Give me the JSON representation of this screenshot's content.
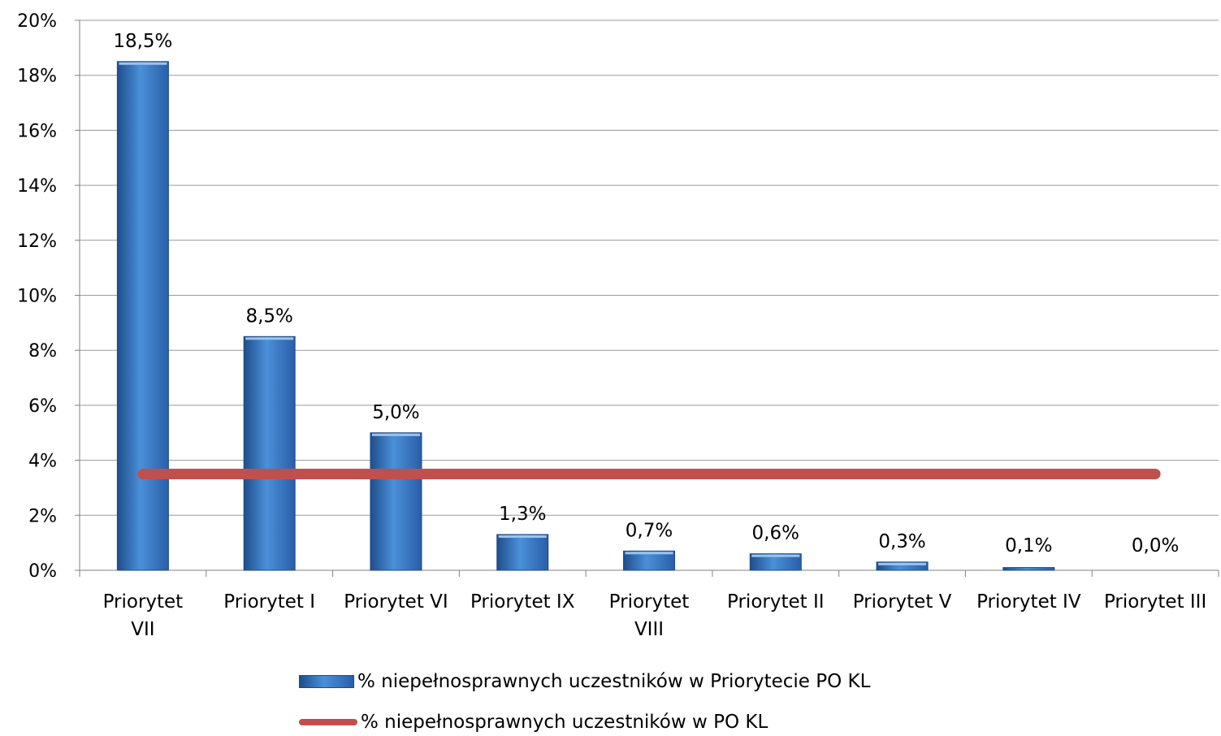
{
  "chart_data": {
    "type": "bar",
    "categories": [
      [
        "Priorytet",
        "VII"
      ],
      [
        "Priorytet I"
      ],
      [
        "Priorytet VI"
      ],
      [
        "Priorytet IX"
      ],
      [
        "Priorytet",
        "VIII"
      ],
      [
        "Priorytet II"
      ],
      [
        "Priorytet V"
      ],
      [
        "Priorytet IV"
      ],
      [
        "Priorytet III"
      ]
    ],
    "series": [
      {
        "name": "% niepełnosprawnych uczestników w Priorytecie PO KL",
        "type": "bar",
        "values": [
          18.5,
          8.5,
          5.0,
          1.3,
          0.7,
          0.6,
          0.3,
          0.1,
          0.0
        ],
        "labels": [
          "18,5%",
          "8,5%",
          "5,0%",
          "1,3%",
          "0,7%",
          "0,6%",
          "0,3%",
          "0,1%",
          "0,0%"
        ],
        "color": "#4a90d9"
      },
      {
        "name": "% niepełnosprawnych uczestników w PO KL",
        "type": "line",
        "value": 3.5,
        "color": "#c0504d"
      }
    ],
    "ylim": [
      0,
      20
    ],
    "yticks": [
      "0%",
      "2%",
      "4%",
      "6%",
      "8%",
      "10%",
      "12%",
      "14%",
      "16%",
      "18%",
      "20%"
    ],
    "grid": true,
    "legend_position": "bottom"
  }
}
